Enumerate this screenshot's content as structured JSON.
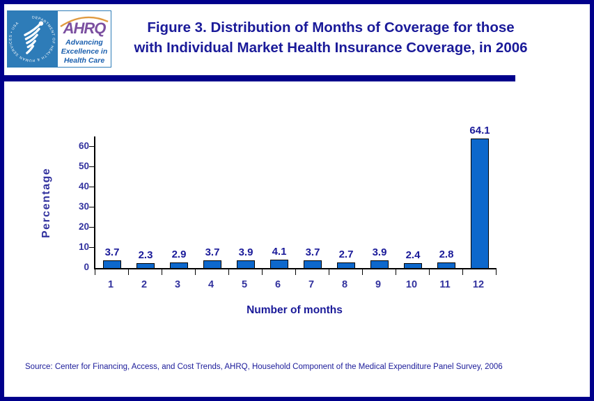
{
  "page": {
    "title_line1": "Figure 3. Distribution of Months of Coverage for those",
    "title_line2": "with Individual Market Health Insurance Coverage, in 2006",
    "source": "Source: Center for Financing, Access, and Cost Trends, AHRQ, Household Component of the Medical Expenditure Panel Survey, 2006"
  },
  "logo": {
    "hhs_ring_text": "DEPARTMENT OF HEALTH & HUMAN SERVICES • USA",
    "ahrq_acronym": "AHRQ",
    "ahrq_tagline_lines": [
      "Advancing",
      "Excellence in",
      "Health Care"
    ]
  },
  "colors": {
    "border_navy": "#00008b",
    "title_navy": "#1a1a99",
    "chart_label_navy": "#32329e",
    "bar_blue": "#0d68cc",
    "hhs_blue": "#2e7cb8",
    "ahrq_purple": "#7b4fa0",
    "ahrq_orange": "#e09a40",
    "tagline_blue": "#1a5fae"
  },
  "chart_data": {
    "type": "bar",
    "title": "Figure 3. Distribution of Months of Coverage for those with Individual Market Health Insurance Coverage, in 2006",
    "categories": [
      "1",
      "2",
      "3",
      "4",
      "5",
      "6",
      "7",
      "8",
      "9",
      "10",
      "11",
      "12"
    ],
    "values": [
      3.7,
      2.3,
      2.9,
      3.7,
      3.9,
      4.1,
      3.7,
      2.7,
      3.9,
      2.4,
      2.8,
      64.1
    ],
    "xlabel": "Number of months",
    "ylabel": "Percentage",
    "ylim": [
      0,
      65
    ],
    "yticks": [
      0,
      10,
      20,
      30,
      40,
      50,
      60
    ],
    "grid": false,
    "legend": "none",
    "bar_labels_shown": true
  }
}
